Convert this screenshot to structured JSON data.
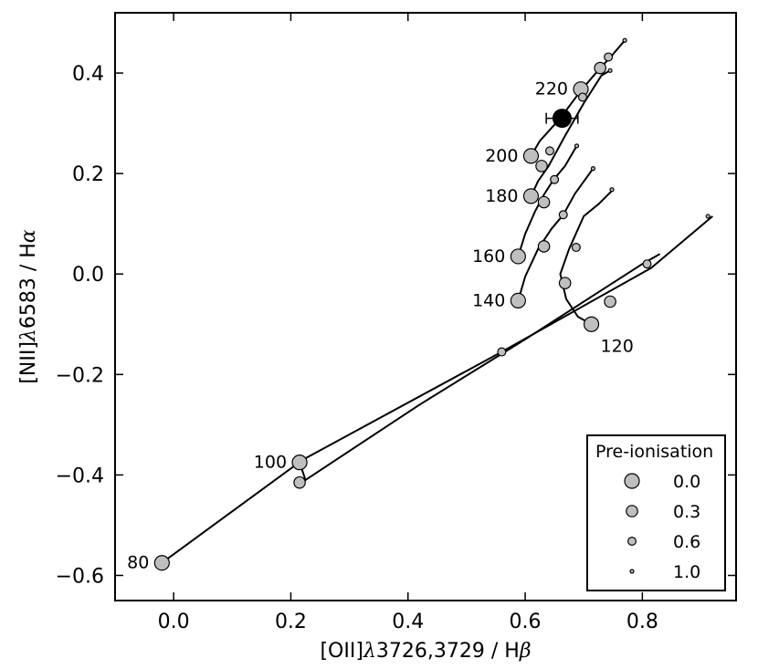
{
  "chart_data": {
    "type": "line",
    "xlabel_parts": [
      "[OII]",
      "λ",
      "3726,3729 / H",
      "β"
    ],
    "ylabel_parts": [
      "[NII]",
      "λ",
      "6583 / H",
      "α"
    ],
    "xlim": [
      -0.1,
      0.96
    ],
    "ylim": [
      -0.65,
      0.52
    ],
    "x_ticks": [
      0.0,
      0.2,
      0.4,
      0.6,
      0.8
    ],
    "x_tick_labels": [
      "0.0",
      "0.2",
      "0.4",
      "0.6",
      "0.8"
    ],
    "y_ticks": [
      -0.6,
      -0.4,
      -0.2,
      0.0,
      0.2,
      0.4
    ],
    "y_tick_labels": [
      "−0.6",
      "−0.4",
      "−0.2",
      "0.0",
      "0.2",
      "0.4"
    ],
    "grid": false,
    "legend": {
      "title": "Pre-ionisation",
      "placement": "lower-right",
      "entries": [
        {
          "label": "0.0",
          "preion": 0.0
        },
        {
          "label": "0.3",
          "preion": 0.3
        },
        {
          "label": "0.6",
          "preion": 0.6
        },
        {
          "label": "1.0",
          "preion": 1.0
        }
      ]
    },
    "marker_color": "#bfbfbf",
    "series": [
      {
        "velocity_label": "80",
        "points": [
          [
            -0.02,
            -0.575
          ],
          [
            0.22,
            -0.37
          ],
          [
            0.56,
            -0.155
          ],
          [
            0.815,
            0.012
          ],
          [
            0.92,
            0.115
          ]
        ],
        "markers": [
          [
            -0.02,
            -0.575,
            0.0
          ],
          [
            0.56,
            -0.155,
            0.6
          ],
          [
            0.912,
            0.115,
            1.0
          ]
        ]
      },
      {
        "velocity_label": "100",
        "points": [
          [
            0.215,
            -0.375
          ],
          [
            0.225,
            -0.41
          ],
          [
            0.42,
            -0.26
          ],
          [
            0.6,
            -0.13
          ],
          [
            0.8,
            0.02
          ],
          [
            0.83,
            0.04
          ]
        ],
        "markers": [
          [
            0.215,
            -0.375,
            0.0
          ],
          [
            0.215,
            -0.415,
            0.3
          ],
          [
            0.808,
            0.02,
            0.6
          ]
        ]
      },
      {
        "velocity_label": "120",
        "points": [
          [
            0.713,
            -0.1
          ],
          [
            0.69,
            -0.085
          ],
          [
            0.67,
            -0.05
          ],
          [
            0.66,
            0.0
          ],
          [
            0.675,
            0.05
          ],
          [
            0.7,
            0.115
          ],
          [
            0.726,
            0.14
          ],
          [
            0.75,
            0.168
          ]
        ],
        "markers": [
          [
            0.713,
            -0.1,
            0.0
          ],
          [
            0.745,
            -0.055,
            0.3
          ],
          [
            0.748,
            0.168,
            1.0
          ]
        ]
      },
      {
        "velocity_label": "140",
        "points": [
          [
            0.588,
            -0.053
          ],
          [
            0.6,
            -0.005
          ],
          [
            0.622,
            0.05
          ],
          [
            0.645,
            0.09
          ],
          [
            0.665,
            0.118
          ],
          [
            0.685,
            0.16
          ],
          [
            0.716,
            0.21
          ]
        ],
        "markers": [
          [
            0.588,
            -0.053,
            0.0
          ],
          [
            0.668,
            -0.018,
            0.3
          ],
          [
            0.687,
            0.053,
            0.6
          ],
          [
            0.716,
            0.21,
            1.0
          ]
        ]
      },
      {
        "velocity_label": "160",
        "points": [
          [
            0.588,
            0.035
          ],
          [
            0.6,
            0.08
          ],
          [
            0.617,
            0.125
          ],
          [
            0.632,
            0.158
          ],
          [
            0.648,
            0.187
          ],
          [
            0.668,
            0.215
          ],
          [
            0.688,
            0.255
          ]
        ],
        "markers": [
          [
            0.588,
            0.035,
            0.0
          ],
          [
            0.632,
            0.055,
            0.3
          ],
          [
            0.665,
            0.118,
            0.6
          ],
          [
            0.688,
            0.255,
            1.0
          ]
        ]
      },
      {
        "velocity_label": "180",
        "points": [
          [
            0.61,
            0.155
          ],
          [
            0.622,
            0.185
          ],
          [
            0.64,
            0.215
          ],
          [
            0.668,
            0.275
          ],
          [
            0.7,
            0.34
          ],
          [
            0.73,
            0.395
          ],
          [
            0.745,
            0.405
          ]
        ],
        "markers": [
          [
            0.61,
            0.155,
            0.0
          ],
          [
            0.632,
            0.143,
            0.3
          ],
          [
            0.65,
            0.188,
            0.6
          ],
          [
            0.745,
            0.405,
            1.0
          ]
        ]
      },
      {
        "velocity_label": "200",
        "points": [
          [
            0.61,
            0.235
          ],
          [
            0.625,
            0.265
          ],
          [
            0.66,
            0.31
          ],
          [
            0.695,
            0.365
          ],
          [
            0.728,
            0.41
          ],
          [
            0.746,
            0.432
          ],
          [
            0.77,
            0.465
          ]
        ],
        "markers": [
          [
            0.61,
            0.235,
            0.0
          ],
          [
            0.628,
            0.215,
            0.3
          ],
          [
            0.642,
            0.245,
            0.6
          ],
          [
            0.77,
            0.465,
            1.0
          ]
        ]
      },
      {
        "velocity_label": "220",
        "points": [
          [
            0.695,
            0.368
          ],
          [
            0.7,
            0.37
          ]
        ],
        "markers": [
          [
            0.695,
            0.368,
            0.0
          ],
          [
            0.728,
            0.41,
            0.3
          ],
          [
            0.742,
            0.432,
            0.6
          ],
          [
            0.698,
            0.352,
            0.6
          ]
        ]
      }
    ],
    "annotations": [
      {
        "text": "80",
        "x": -0.02,
        "y": -0.575,
        "anchor": "end"
      },
      {
        "text": "100",
        "x": 0.215,
        "y": -0.375,
        "anchor": "end"
      },
      {
        "text": "120",
        "x": 0.713,
        "y": -0.1,
        "anchor": "start-below"
      },
      {
        "text": "140",
        "x": 0.588,
        "y": -0.053,
        "anchor": "end"
      },
      {
        "text": "160",
        "x": 0.588,
        "y": 0.035,
        "anchor": "end"
      },
      {
        "text": "180",
        "x": 0.61,
        "y": 0.155,
        "anchor": "end"
      },
      {
        "text": "200",
        "x": 0.61,
        "y": 0.235,
        "anchor": "end"
      },
      {
        "text": "220",
        "x": 0.695,
        "y": 0.368,
        "anchor": "end"
      }
    ],
    "observation": {
      "x": 0.663,
      "y": 0.31,
      "xerr": 0.027,
      "yerr": 0.0,
      "color": "#000000"
    }
  }
}
